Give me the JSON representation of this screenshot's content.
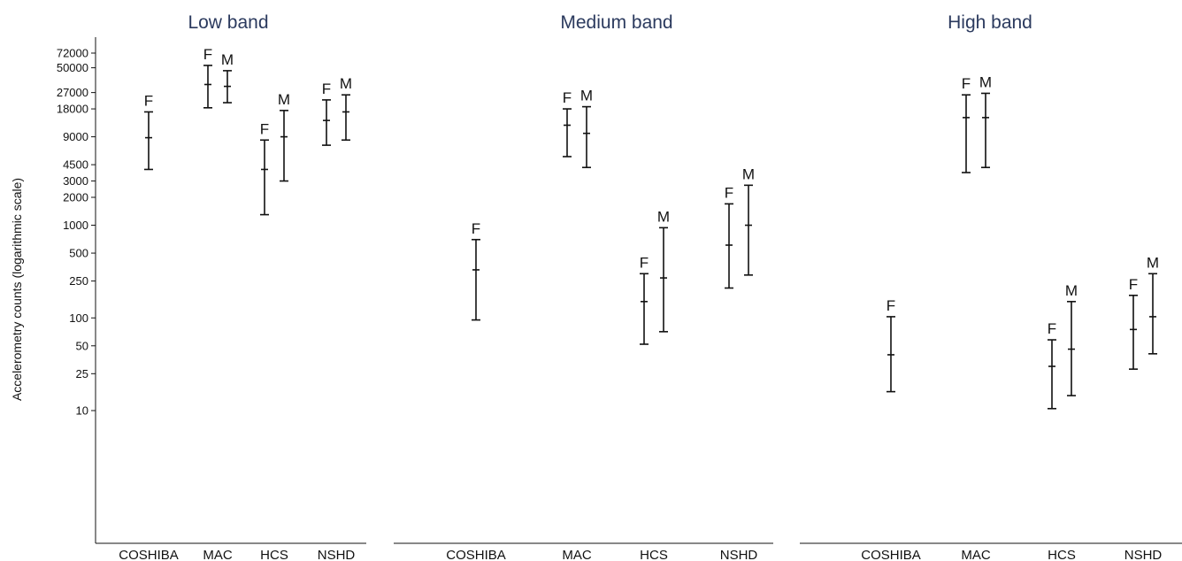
{
  "chart_data": {
    "type": "errorbar",
    "ylabel": "Accelerometry counts (logarithmic scale)",
    "yscale": "log",
    "ylim": [
      1.5,
      140000
    ],
    "yticks": [
      72000,
      50000,
      27000,
      18000,
      9000,
      4500,
      3000,
      2000,
      1000,
      500,
      250,
      100,
      50,
      25,
      10
    ],
    "grid": false,
    "panels": [
      {
        "title": "Low band",
        "categories": [
          "COSHIBA",
          "MAC",
          "HCS",
          "NSHD"
        ],
        "bars": [
          {
            "category": "COSHIBA",
            "sex": "F",
            "median": 8800,
            "low": 4000,
            "high": 16700
          },
          {
            "category": "MAC",
            "sex": "F",
            "median": 33000,
            "low": 18500,
            "high": 53000
          },
          {
            "category": "MAC",
            "sex": "M",
            "median": 31500,
            "low": 21000,
            "high": 46500
          },
          {
            "category": "HCS",
            "sex": "F",
            "median": 4000,
            "low": 1300,
            "high": 8300
          },
          {
            "category": "HCS",
            "sex": "M",
            "median": 9000,
            "low": 3000,
            "high": 17300
          },
          {
            "category": "NSHD",
            "sex": "F",
            "median": 13500,
            "low": 7300,
            "high": 22500
          },
          {
            "category": "NSHD",
            "sex": "M",
            "median": 16700,
            "low": 8300,
            "high": 25500
          }
        ]
      },
      {
        "title": "Medium band",
        "categories": [
          "COSHIBA",
          "MAC",
          "HCS",
          "NSHD"
        ],
        "bars": [
          {
            "category": "COSHIBA",
            "sex": "F",
            "median": 330,
            "low": 95,
            "high": 700
          },
          {
            "category": "MAC",
            "sex": "F",
            "median": 12000,
            "low": 5500,
            "high": 18000
          },
          {
            "category": "MAC",
            "sex": "M",
            "median": 9800,
            "low": 4200,
            "high": 19000
          },
          {
            "category": "HCS",
            "sex": "F",
            "median": 150,
            "low": 52,
            "high": 300
          },
          {
            "category": "HCS",
            "sex": "M",
            "median": 270,
            "low": 71,
            "high": 940
          },
          {
            "category": "NSHD",
            "sex": "F",
            "median": 610,
            "low": 210,
            "high": 1700
          },
          {
            "category": "NSHD",
            "sex": "M",
            "median": 1000,
            "low": 290,
            "high": 2700
          }
        ]
      },
      {
        "title": "High band",
        "categories": [
          "COSHIBA",
          "MAC",
          "HCS",
          "NSHD"
        ],
        "bars": [
          {
            "category": "COSHIBA",
            "sex": "F",
            "median": 40,
            "low": 16,
            "high": 103
          },
          {
            "category": "MAC",
            "sex": "F",
            "median": 14500,
            "low": 3700,
            "high": 25500
          },
          {
            "category": "MAC",
            "sex": "M",
            "median": 14500,
            "low": 4200,
            "high": 26500
          },
          {
            "category": "HCS",
            "sex": "F",
            "median": 30,
            "low": 10.5,
            "high": 58
          },
          {
            "category": "HCS",
            "sex": "M",
            "median": 46,
            "low": 14.5,
            "high": 150
          },
          {
            "category": "NSHD",
            "sex": "F",
            "median": 75,
            "low": 28,
            "high": 175
          },
          {
            "category": "NSHD",
            "sex": "M",
            "median": 103,
            "low": 41,
            "high": 300
          }
        ]
      }
    ]
  }
}
